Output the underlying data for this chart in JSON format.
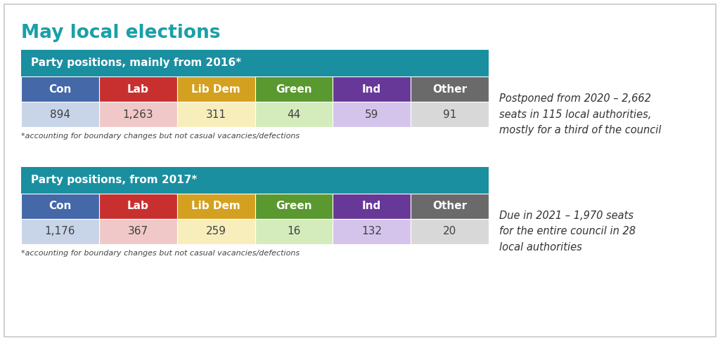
{
  "title": "May local elections",
  "title_color": "#1AA0A8",
  "background_color": "#FFFFFF",
  "table1": {
    "header": "Party positions, mainly from 2016*",
    "header_bg": "#1A8FA0",
    "header_text_color": "#FFFFFF",
    "parties": [
      "Con",
      "Lab",
      "Lib Dem",
      "Green",
      "Ind",
      "Other"
    ],
    "values": [
      "894",
      "1,263",
      "311",
      "44",
      "59",
      "91"
    ],
    "party_colors": [
      "#4468A8",
      "#C83030",
      "#D4A020",
      "#5A9830",
      "#683898",
      "#6A6A6A"
    ],
    "value_bg_colors": [
      "#C8D4E8",
      "#F0C8C8",
      "#F8EEBB",
      "#D4ECBC",
      "#D4C4EC",
      "#D8D8D8"
    ],
    "text_color": "#FFFFFF",
    "value_text_color": "#404040",
    "note": "*accounting for boundary changes but not casual vacancies/defections",
    "side_note": "Postponed from 2020 – 2,662\nseats in 115 local authorities,\nmostly for a third of the council"
  },
  "table2": {
    "header": "Party positions, from 2017*",
    "header_bg": "#1A8FA0",
    "header_text_color": "#FFFFFF",
    "parties": [
      "Con",
      "Lab",
      "Lib Dem",
      "Green",
      "Ind",
      "Other"
    ],
    "values": [
      "1,176",
      "367",
      "259",
      "16",
      "132",
      "20"
    ],
    "party_colors": [
      "#4468A8",
      "#C83030",
      "#D4A020",
      "#5A9830",
      "#683898",
      "#6A6A6A"
    ],
    "value_bg_colors": [
      "#C8D4E8",
      "#F0C8C8",
      "#F8EEBB",
      "#D4ECBC",
      "#D4C4EC",
      "#D8D8D8"
    ],
    "text_color": "#FFFFFF",
    "value_text_color": "#404040",
    "note": "*accounting for boundary changes but not casual vacancies/defections",
    "side_note": "Due in 2021 – 1,970 seats\nfor the entire council in 28\nlocal authorities"
  },
  "border_color": "#C8C8C8"
}
